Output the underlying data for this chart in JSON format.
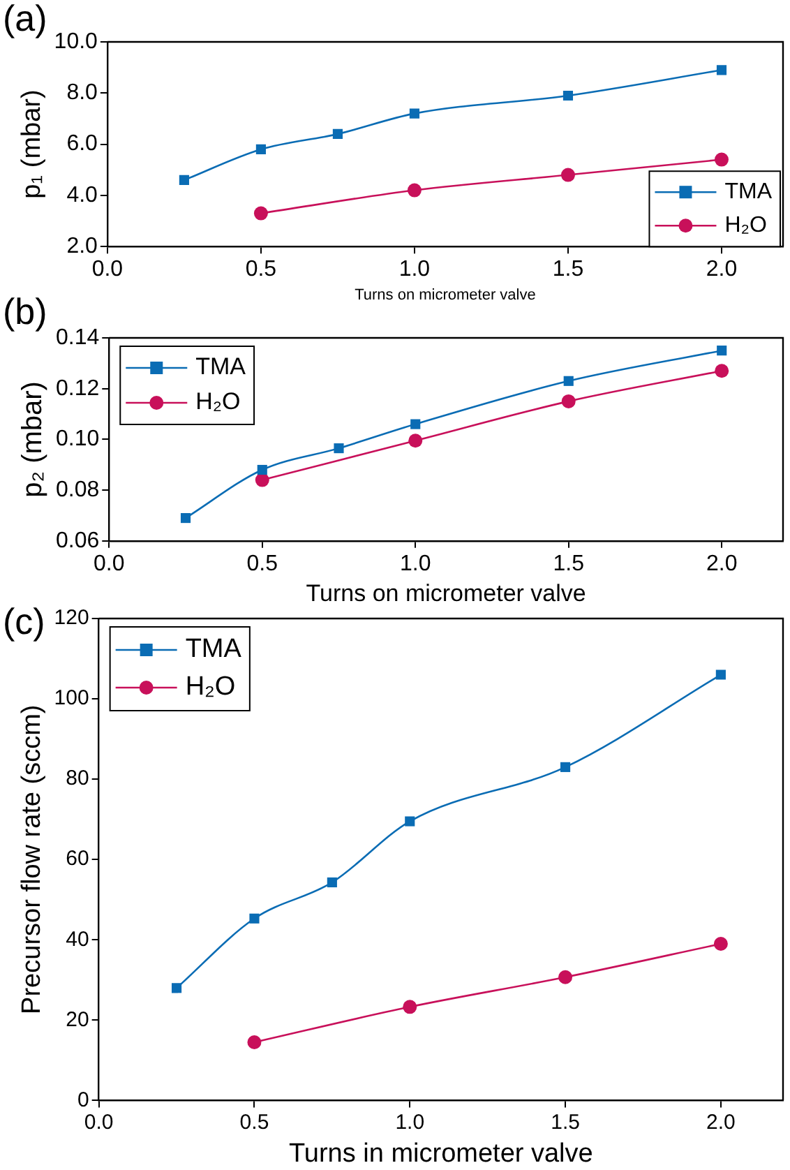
{
  "chart_data": [
    {
      "type": "line",
      "annotations": [
        "(a)"
      ],
      "xlabel": "Turns on micrometer valve",
      "ylabel": "p₁ (mbar)",
      "xlim": [
        0,
        2.2
      ],
      "xticks": [
        {
          "value": 0,
          "label": "0.0"
        },
        {
          "value": 0.5,
          "label": "0.5"
        },
        {
          "value": 1,
          "label": "1.0"
        },
        {
          "value": 1.5,
          "label": "1.5"
        },
        {
          "value": 2,
          "label": "2.0"
        }
      ],
      "ylim": [
        2,
        10
      ],
      "yticks": [
        {
          "value": 2,
          "label": "2.0"
        },
        {
          "value": 4,
          "label": "4.0"
        },
        {
          "value": 6,
          "label": "6.0"
        },
        {
          "value": 8,
          "label": "8.0"
        },
        {
          "value": 10,
          "label": "10.0"
        }
      ],
      "grid": false,
      "legend": "bottom right",
      "series": [
        {
          "name": "TMA",
          "color": "#0a6cb4",
          "marker": "square",
          "x": [
            0.25,
            0.5,
            0.75,
            1,
            1.5,
            2
          ],
          "values": [
            4.6,
            5.8,
            6.4,
            7.2,
            7.9,
            8.9
          ]
        },
        {
          "name": "H₂O",
          "color": "#c8105a",
          "marker": "circle",
          "x": [
            0.5,
            1,
            1.5,
            2
          ],
          "values": [
            3.3,
            4.2,
            4.8,
            5.4
          ]
        }
      ]
    },
    {
      "type": "line",
      "annotations": [
        "(b)"
      ],
      "xlabel": "Turns on micrometer valve",
      "ylabel": "p₂ (mbar)",
      "xlim": [
        0,
        2.2
      ],
      "xticks": [
        {
          "value": 0,
          "label": "0.0"
        },
        {
          "value": 0.5,
          "label": "0.5"
        },
        {
          "value": 1,
          "label": "1.0"
        },
        {
          "value": 1.5,
          "label": "1.5"
        },
        {
          "value": 2,
          "label": "2.0"
        }
      ],
      "ylim": [
        0.06,
        0.14
      ],
      "yticks": [
        {
          "value": 0.06,
          "label": "0.06"
        },
        {
          "value": 0.08,
          "label": "0.08"
        },
        {
          "value": 0.1,
          "label": "0.10"
        },
        {
          "value": 0.12,
          "label": "0.12"
        },
        {
          "value": 0.14,
          "label": "0.14"
        }
      ],
      "grid": false,
      "legend": "top left",
      "series": [
        {
          "name": "TMA",
          "color": "#0a6cb4",
          "marker": "square",
          "x": [
            0.25,
            0.5,
            0.75,
            1,
            1.5,
            2
          ],
          "values": [
            0.069,
            0.088,
            0.0965,
            0.106,
            0.123,
            0.135
          ]
        },
        {
          "name": "H₂O",
          "color": "#c8105a",
          "marker": "circle",
          "x": [
            0.5,
            1,
            1.5,
            2
          ],
          "values": [
            0.084,
            0.0995,
            0.115,
            0.127
          ]
        }
      ]
    },
    {
      "type": "line",
      "annotations": [
        "(c)"
      ],
      "xlabel": "Turns in micrometer valve",
      "ylabel": "Precursor flow rate (sccm)",
      "xlim": [
        0,
        2.2
      ],
      "xticks": [
        {
          "value": 0,
          "label": "0.0"
        },
        {
          "value": 0.5,
          "label": "0.5"
        },
        {
          "value": 1,
          "label": "1.0"
        },
        {
          "value": 1.5,
          "label": "1.5"
        },
        {
          "value": 2,
          "label": "2.0"
        }
      ],
      "ylim": [
        0,
        120
      ],
      "yticks": [
        0,
        20,
        40,
        60,
        80,
        100,
        120
      ],
      "grid": false,
      "legend": "top left",
      "series": [
        {
          "name": "TMA",
          "color": "#0a6cb4",
          "marker": "square",
          "x": [
            0.25,
            0.5,
            0.75,
            1,
            1.5,
            2
          ],
          "values": [
            28,
            45.3,
            54.3,
            69.5,
            83,
            106
          ]
        },
        {
          "name": "H₂O",
          "color": "#c8105a",
          "marker": "circle",
          "x": [
            0.5,
            1,
            1.5,
            2
          ],
          "values": [
            14.5,
            23.3,
            30.7,
            39
          ]
        }
      ]
    }
  ]
}
